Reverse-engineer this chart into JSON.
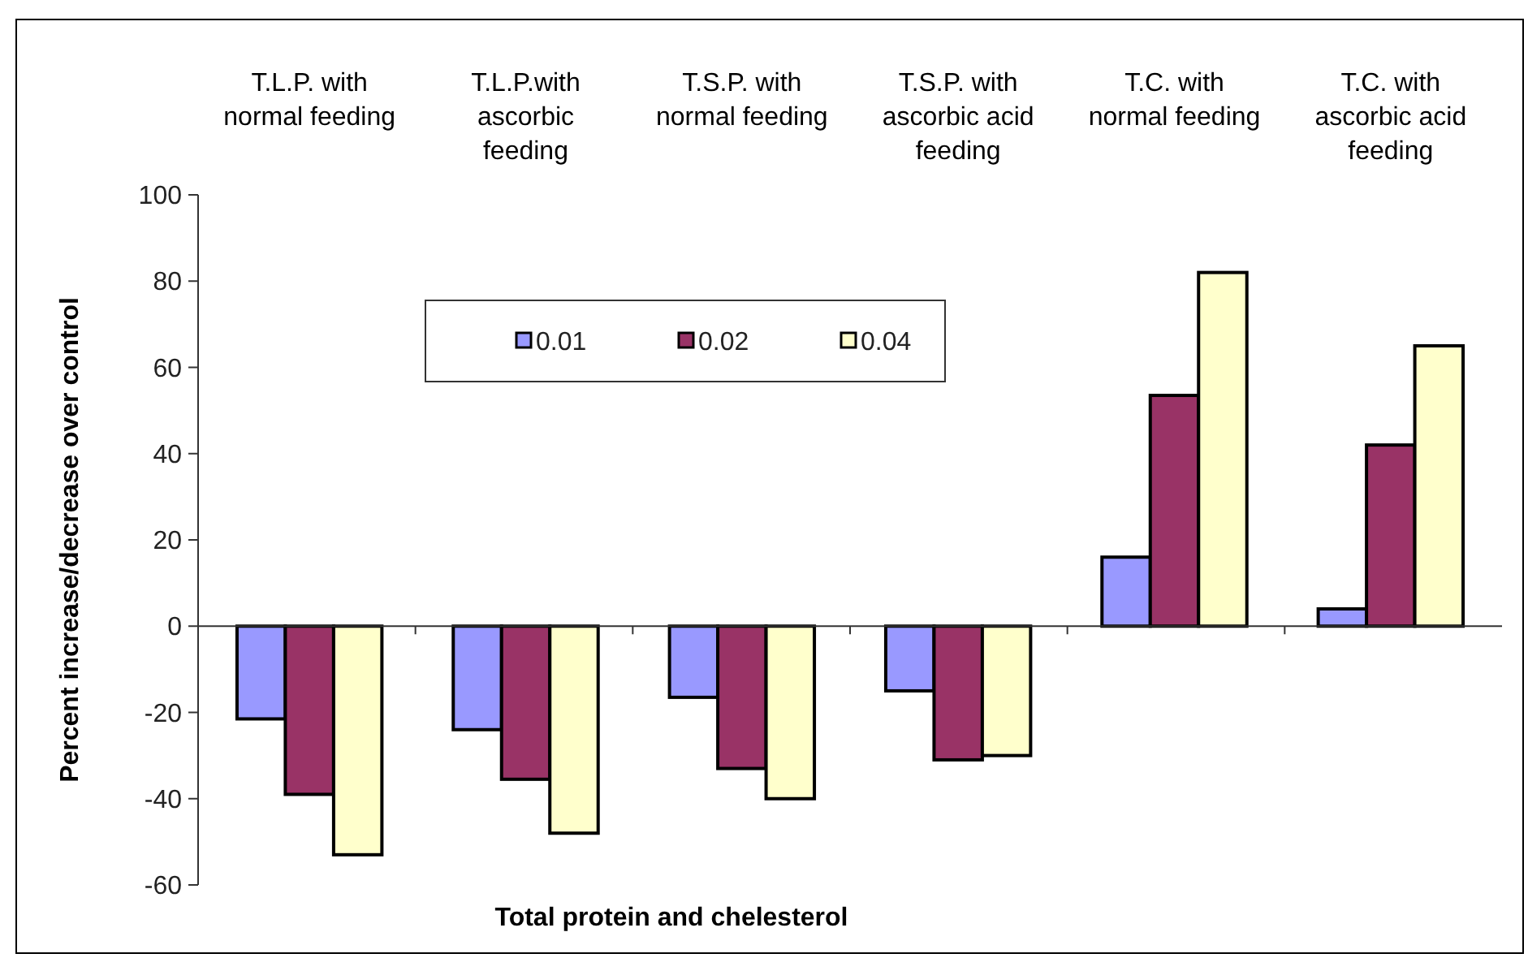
{
  "chart_data": {
    "type": "bar",
    "xlabel": "Total protein and chelesterol",
    "ylabel": "Percent increase/decrease over control",
    "categories": [
      "T.L.P. with\nnormal feeding",
      "T.L.P.with\nascorbic\nfeeding",
      "T.S.P. with\nnormal  feeding",
      "T.S.P. with\nascorbic acid\nfeeding",
      "T.C. with\nnormal feeding",
      "T.C. with\nascorbic acid\nfeeding"
    ],
    "series": [
      {
        "name": "0.01",
        "color": "#9999ff",
        "values": [
          -21.5,
          -24,
          -16.5,
          -15,
          16,
          4
        ]
      },
      {
        "name": "0.02",
        "color": "#993366",
        "values": [
          -39,
          -35.5,
          -33,
          -31,
          53.5,
          42
        ]
      },
      {
        "name": "0.04",
        "color": "#ffffcc",
        "values": [
          -53,
          -48,
          -40,
          -30,
          82,
          65
        ]
      }
    ],
    "ylim": [
      -60,
      100
    ],
    "yticks": [
      -60,
      -40,
      -20,
      0,
      20,
      40,
      60,
      80,
      100
    ],
    "legend": "top"
  }
}
